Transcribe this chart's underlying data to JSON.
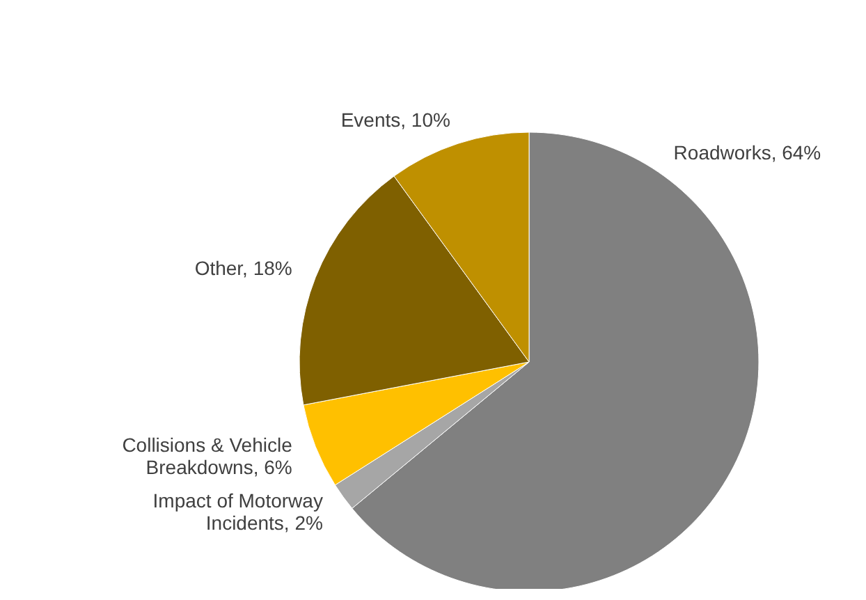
{
  "chart_data": {
    "type": "pie",
    "categories": [
      "Roadworks",
      "Impact of Motorway Incidents",
      "Collisions & Vehicle Breakdowns",
      "Other",
      "Events"
    ],
    "values": [
      64,
      2,
      6,
      18,
      10
    ],
    "value_labels": [
      "64%",
      "2%",
      "6%",
      "18%",
      "10%"
    ],
    "colors": [
      "#808080",
      "#a6a6a6",
      "#ffc000",
      "#7f6000",
      "#bf9000"
    ]
  }
}
